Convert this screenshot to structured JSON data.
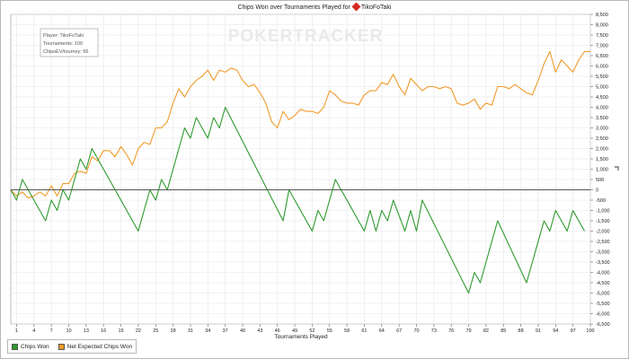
{
  "chart_data": {
    "type": "line",
    "title_prefix": "Chips Won over Tournaments Played for",
    "title_player": "TikoFoTaki",
    "xlabel": "Tournaments Played",
    "ylabel": "",
    "xlim": [
      0,
      100
    ],
    "ylim": [
      -6500,
      8500
    ],
    "grid": true,
    "legend_position": "bottom-left",
    "watermark": "POKERTRACKER",
    "info_box": [
      "Player: TikoFoTaki",
      "Tournaments: 100",
      "ChipsEV/tourney: 66"
    ],
    "x_ticks": [
      1,
      4,
      7,
      10,
      13,
      16,
      19,
      22,
      25,
      28,
      31,
      34,
      37,
      40,
      43,
      46,
      49,
      52,
      55,
      58,
      61,
      64,
      67,
      70,
      73,
      76,
      79,
      82,
      85,
      88,
      91,
      94,
      97,
      100
    ],
    "y_ticks": [
      8500,
      8000,
      7500,
      7000,
      6500,
      6000,
      5500,
      5000,
      4500,
      4000,
      3500,
      3000,
      2500,
      2000,
      1500,
      1000,
      500,
      0,
      -500,
      -1000,
      -1500,
      -2000,
      -2500,
      -3000,
      -3500,
      -4000,
      -4500,
      -5000,
      -5500,
      -6000,
      -6500
    ],
    "y_tick_labels": [
      "8,500",
      "8,000",
      "7,500",
      "7,000",
      "6,500",
      "6,000",
      "5,500",
      "5,000",
      "4,500",
      "4,000",
      "3,500",
      "3,000",
      "2,500",
      "2,000",
      "1,500",
      "1,000",
      "500",
      "0",
      "-500",
      "-1,000",
      "-1,500",
      "-2,000",
      "-2,500",
      "-3,000",
      "-3,500",
      "-4,000",
      "-4,500",
      "-5,000",
      "-5,500",
      "-6,000",
      "-6,500"
    ],
    "series": [
      {
        "name": "Chips Won",
        "color": "#2e9a2e",
        "points": [
          [
            0,
            0
          ],
          [
            1,
            -500
          ],
          [
            2,
            500
          ],
          [
            6,
            -1500
          ],
          [
            7,
            -500
          ],
          [
            8,
            -1000
          ],
          [
            9,
            0
          ],
          [
            10,
            -500
          ],
          [
            12,
            1500
          ],
          [
            13,
            1000
          ],
          [
            14,
            2000
          ],
          [
            22,
            -2000
          ],
          [
            24,
            0
          ],
          [
            25,
            -500
          ],
          [
            26,
            500
          ],
          [
            27,
            0
          ],
          [
            30,
            3000
          ],
          [
            31,
            2500
          ],
          [
            32,
            3500
          ],
          [
            34,
            2500
          ],
          [
            35,
            3500
          ],
          [
            36,
            3000
          ],
          [
            37,
            4000
          ],
          [
            47,
            -1500
          ],
          [
            48,
            0
          ],
          [
            52,
            -2000
          ],
          [
            53,
            -1000
          ],
          [
            54,
            -1500
          ],
          [
            56,
            500
          ],
          [
            61,
            -2000
          ],
          [
            62,
            -1000
          ],
          [
            63,
            -2000
          ],
          [
            64,
            -1000
          ],
          [
            65,
            -1500
          ],
          [
            66,
            -500
          ],
          [
            68,
            -2000
          ],
          [
            69,
            -1000
          ],
          [
            70,
            -2000
          ],
          [
            71,
            -500
          ],
          [
            79,
            -5000
          ],
          [
            80,
            -4000
          ],
          [
            81,
            -4500
          ],
          [
            84,
            -1500
          ],
          [
            89,
            -4500
          ],
          [
            92,
            -1500
          ],
          [
            93,
            -2000
          ],
          [
            94,
            -1000
          ],
          [
            96,
            -2000
          ],
          [
            97,
            -1000
          ],
          [
            99,
            -2000
          ]
        ]
      },
      {
        "name": "Net Expected Chips Won",
        "color": "#f09a2a",
        "points": [
          [
            0,
            0
          ],
          [
            1,
            -300
          ],
          [
            2,
            -100
          ],
          [
            3,
            -400
          ],
          [
            4,
            -300
          ],
          [
            5,
            -100
          ],
          [
            6,
            -300
          ],
          [
            7,
            200
          ],
          [
            8,
            -300
          ],
          [
            9,
            300
          ],
          [
            10,
            300
          ],
          [
            11,
            800
          ],
          [
            12,
            900
          ],
          [
            13,
            800
          ],
          [
            14,
            1600
          ],
          [
            15,
            1400
          ],
          [
            16,
            1900
          ],
          [
            17,
            1900
          ],
          [
            18,
            1600
          ],
          [
            19,
            2100
          ],
          [
            20,
            1700
          ],
          [
            21,
            1200
          ],
          [
            22,
            2000
          ],
          [
            23,
            2300
          ],
          [
            24,
            2200
          ],
          [
            25,
            3000
          ],
          [
            26,
            3000
          ],
          [
            27,
            3300
          ],
          [
            28,
            4200
          ],
          [
            29,
            4900
          ],
          [
            30,
            4500
          ],
          [
            31,
            5000
          ],
          [
            32,
            5300
          ],
          [
            33,
            5500
          ],
          [
            34,
            5800
          ],
          [
            35,
            5300
          ],
          [
            36,
            5800
          ],
          [
            37,
            5700
          ],
          [
            38,
            5900
          ],
          [
            39,
            5800
          ],
          [
            40,
            5300
          ],
          [
            41,
            5000
          ],
          [
            42,
            5100
          ],
          [
            43,
            4700
          ],
          [
            44,
            4200
          ],
          [
            45,
            3300
          ],
          [
            46,
            3000
          ],
          [
            47,
            3800
          ],
          [
            48,
            3400
          ],
          [
            49,
            3600
          ],
          [
            50,
            3900
          ],
          [
            51,
            3800
          ],
          [
            52,
            3800
          ],
          [
            53,
            3700
          ],
          [
            54,
            4000
          ],
          [
            55,
            4800
          ],
          [
            56,
            4600
          ],
          [
            57,
            4300
          ],
          [
            58,
            4200
          ],
          [
            59,
            4200
          ],
          [
            60,
            4100
          ],
          [
            61,
            4600
          ],
          [
            62,
            4800
          ],
          [
            63,
            4800
          ],
          [
            64,
            5200
          ],
          [
            65,
            5100
          ],
          [
            66,
            5600
          ],
          [
            67,
            5000
          ],
          [
            68,
            4600
          ],
          [
            69,
            5400
          ],
          [
            70,
            5100
          ],
          [
            71,
            4800
          ],
          [
            72,
            5000
          ],
          [
            73,
            5000
          ],
          [
            74,
            4900
          ],
          [
            75,
            5000
          ],
          [
            76,
            4900
          ],
          [
            77,
            4200
          ],
          [
            78,
            4100
          ],
          [
            79,
            4200
          ],
          [
            80,
            4400
          ],
          [
            81,
            3900
          ],
          [
            82,
            4200
          ],
          [
            83,
            4100
          ],
          [
            84,
            5000
          ],
          [
            85,
            5000
          ],
          [
            86,
            4900
          ],
          [
            87,
            5100
          ],
          [
            88,
            4900
          ],
          [
            89,
            4700
          ],
          [
            90,
            4600
          ],
          [
            91,
            5300
          ],
          [
            92,
            6100
          ],
          [
            93,
            6700
          ],
          [
            94,
            5700
          ],
          [
            95,
            6300
          ],
          [
            96,
            6000
          ],
          [
            97,
            5700
          ],
          [
            98,
            6300
          ],
          [
            99,
            6700
          ],
          [
            100,
            6700
          ]
        ]
      }
    ]
  }
}
